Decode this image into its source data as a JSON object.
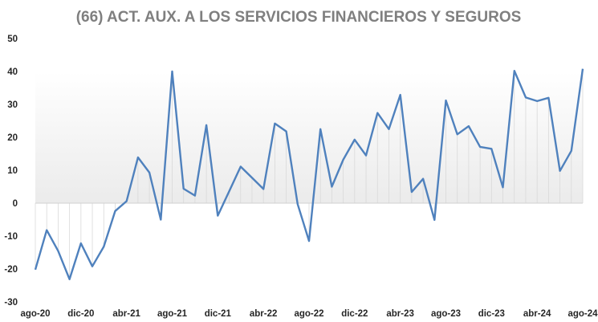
{
  "chart_data": {
    "type": "line",
    "title": "(66) ACT. AUX. A LOS SERVICIOS FINANCIEROS Y SEGUROS",
    "xlabel": "",
    "ylabel": "",
    "ylim": [
      -30,
      50
    ],
    "yticks": [
      50,
      40,
      30,
      20,
      10,
      0,
      -10,
      -20,
      -30
    ],
    "x_tick_labels": [
      "ago-20",
      "dic-20",
      "abr-21",
      "ago-21",
      "dic-21",
      "abr-22",
      "ago-22",
      "dic-22",
      "abr-23",
      "ago-23",
      "dic-23",
      "abr-24",
      "ago-24"
    ],
    "x": [
      "ago-20",
      "sep-20",
      "oct-20",
      "nov-20",
      "dic-20",
      "ene-21",
      "feb-21",
      "mar-21",
      "abr-21",
      "may-21",
      "jun-21",
      "jul-21",
      "ago-21",
      "sep-21",
      "oct-21",
      "nov-21",
      "dic-21",
      "ene-22",
      "feb-22",
      "mar-22",
      "abr-22",
      "may-22",
      "jun-22",
      "jul-22",
      "ago-22",
      "sep-22",
      "oct-22",
      "nov-22",
      "dic-22",
      "ene-23",
      "feb-23",
      "mar-23",
      "abr-23",
      "may-23",
      "jun-23",
      "jul-23",
      "ago-23",
      "sep-23",
      "oct-23",
      "nov-23",
      "dic-23",
      "ene-24",
      "feb-24",
      "mar-24",
      "abr-24",
      "may-24",
      "jun-24",
      "jul-24",
      "ago-24"
    ],
    "series": [
      {
        "color": "#4f81bd",
        "values": [
          -20.2,
          -8.2,
          -14.5,
          -23.1,
          -12.2,
          -19.2,
          -13.2,
          -2.4,
          0.6,
          13.9,
          9.3,
          -5.0,
          40.0,
          4.4,
          2.3,
          23.7,
          -3.8,
          3.6,
          11.1,
          7.7,
          4.3,
          24.2,
          21.8,
          -0.3,
          -11.5,
          22.5,
          5.0,
          13.2,
          19.3,
          14.5,
          27.4,
          22.5,
          32.9,
          3.4,
          7.4,
          -5.1,
          31.2,
          20.9,
          23.4,
          17.1,
          16.5,
          4.8,
          40.2,
          32.1,
          31.0,
          32.0,
          9.8,
          15.9,
          40.8
        ]
      }
    ],
    "grid": false,
    "shaded_area": true,
    "drop_lines": true,
    "legend": "none"
  }
}
